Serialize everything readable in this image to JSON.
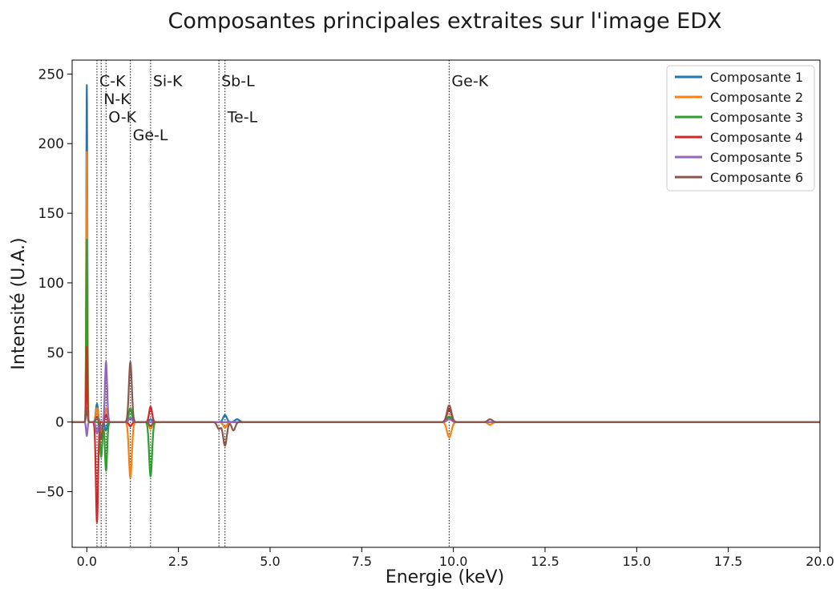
{
  "chart_data": {
    "type": "line",
    "title": "Composantes principales extraites sur l'image EDX",
    "xlabel": "Energie (keV)",
    "ylabel": "Intensité (U.A.)",
    "xlim": [
      -0.4,
      20.0
    ],
    "ylim": [
      -90,
      260
    ],
    "x_ticks": [
      0.0,
      2.5,
      5.0,
      7.5,
      10.0,
      12.5,
      15.0,
      17.5,
      20.0
    ],
    "x_tick_labels": [
      "0.0",
      "2.5",
      "5.0",
      "7.5",
      "10.0",
      "12.5",
      "15.0",
      "17.5",
      "20.0"
    ],
    "y_ticks": [
      -50,
      0,
      50,
      100,
      150,
      200,
      250
    ],
    "y_tick_labels": [
      "−50",
      "0",
      "50",
      "100",
      "150",
      "200",
      "250"
    ],
    "grid": false,
    "legend_position": "top-right",
    "reference_lines": [
      {
        "label": "C-K",
        "x": 0.277,
        "label_y": 246
      },
      {
        "label": "N-K",
        "x": 0.392,
        "label_y": 233
      },
      {
        "label": "O-K",
        "x": 0.525,
        "label_y": 220
      },
      {
        "label": "Ge-L",
        "x": 1.188,
        "label_y": 207
      },
      {
        "label": "Si-K",
        "x": 1.74,
        "label_y": 246
      },
      {
        "label": "Sb-L",
        "x": 3.604,
        "label_y": 246
      },
      {
        "label": "Te-L",
        "x": 3.769,
        "label_y": 220
      },
      {
        "label": "Ge-K",
        "x": 9.886,
        "label_y": 246
      }
    ],
    "series": [
      {
        "name": "Composante 1",
        "color": "#1f77b4",
        "peaks": [
          {
            "x": 0.0,
            "h": 242,
            "w": 0.015
          },
          {
            "x": 0.277,
            "h": 13,
            "w": 0.03
          },
          {
            "x": 0.52,
            "h": -6,
            "w": 0.03
          },
          {
            "x": 1.188,
            "h": 3,
            "w": 0.04
          },
          {
            "x": 1.74,
            "h": 2,
            "w": 0.04
          },
          {
            "x": 3.769,
            "h": 5,
            "w": 0.05
          },
          {
            "x": 4.1,
            "h": 2,
            "w": 0.06
          },
          {
            "x": 9.886,
            "h": 3,
            "w": 0.06
          }
        ]
      },
      {
        "name": "Composante 2",
        "color": "#ff7f0e",
        "peaks": [
          {
            "x": 0.0,
            "h": 194,
            "w": 0.015
          },
          {
            "x": 0.277,
            "h": 10,
            "w": 0.03
          },
          {
            "x": 0.392,
            "h": -8,
            "w": 0.03
          },
          {
            "x": 0.525,
            "h": 10,
            "w": 0.03
          },
          {
            "x": 1.188,
            "h": -40,
            "w": 0.04
          },
          {
            "x": 1.74,
            "h": -5,
            "w": 0.04
          },
          {
            "x": 3.769,
            "h": -4,
            "w": 0.05
          },
          {
            "x": 9.886,
            "h": -11,
            "w": 0.06
          },
          {
            "x": 11.0,
            "h": -2,
            "w": 0.06
          }
        ]
      },
      {
        "name": "Composante 3",
        "color": "#2ca02c",
        "peaks": [
          {
            "x": 0.0,
            "h": 131,
            "w": 0.015
          },
          {
            "x": 0.392,
            "h": -25,
            "w": 0.03
          },
          {
            "x": 0.525,
            "h": -35,
            "w": 0.03
          },
          {
            "x": 1.188,
            "h": 10,
            "w": 0.04
          },
          {
            "x": 1.74,
            "h": -39,
            "w": 0.04
          },
          {
            "x": 9.886,
            "h": 4,
            "w": 0.06
          }
        ]
      },
      {
        "name": "Composante 4",
        "color": "#d62728",
        "peaks": [
          {
            "x": 0.0,
            "h": 54,
            "w": 0.015
          },
          {
            "x": 0.277,
            "h": -72,
            "w": 0.03
          },
          {
            "x": 0.525,
            "h": 5,
            "w": 0.03
          },
          {
            "x": 1.188,
            "h": -3,
            "w": 0.04
          },
          {
            "x": 1.74,
            "h": 11,
            "w": 0.04
          },
          {
            "x": 9.886,
            "h": 9,
            "w": 0.06
          }
        ]
      },
      {
        "name": "Composante 5",
        "color": "#9467bd",
        "peaks": [
          {
            "x": 0.0,
            "h": -10,
            "w": 0.02
          },
          {
            "x": 0.277,
            "h": -8,
            "w": 0.03
          },
          {
            "x": 0.392,
            "h": -5,
            "w": 0.03
          },
          {
            "x": 0.525,
            "h": 43,
            "w": 0.03
          },
          {
            "x": 1.188,
            "h": 3,
            "w": 0.04
          },
          {
            "x": 9.886,
            "h": 2,
            "w": 0.06
          }
        ]
      },
      {
        "name": "Composante 6",
        "color": "#8c564b",
        "peaks": [
          {
            "x": 0.0,
            "h": 10,
            "w": 0.02
          },
          {
            "x": 0.277,
            "h": 4,
            "w": 0.03
          },
          {
            "x": 0.392,
            "h": -12,
            "w": 0.03
          },
          {
            "x": 1.188,
            "h": 43,
            "w": 0.04
          },
          {
            "x": 1.74,
            "h": -3,
            "w": 0.04
          },
          {
            "x": 3.604,
            "h": -5,
            "w": 0.05
          },
          {
            "x": 3.769,
            "h": -17,
            "w": 0.05
          },
          {
            "x": 4.0,
            "h": -6,
            "w": 0.05
          },
          {
            "x": 9.886,
            "h": 12,
            "w": 0.06
          },
          {
            "x": 11.0,
            "h": 2,
            "w": 0.06
          }
        ]
      }
    ]
  }
}
